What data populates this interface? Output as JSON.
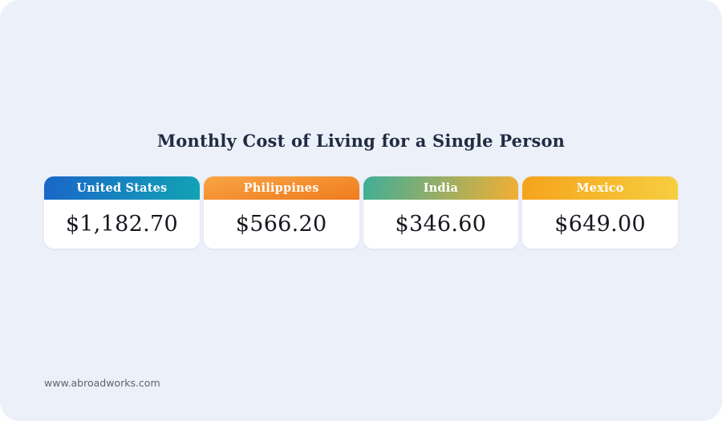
{
  "page": {
    "title": "Monthly Cost of Living for a Single Person",
    "footer": "www.abroadworks.com"
  },
  "chart_data": {
    "type": "table",
    "title": "Monthly Cost of Living for a Single Person",
    "categories": [
      "United States",
      "Philippines",
      "India",
      "Mexico"
    ],
    "values": [
      1182.7,
      566.2,
      346.6,
      649.0
    ],
    "value_labels": [
      "$1,182.70",
      "$566.20",
      "$346.60",
      "$649.00"
    ],
    "currency": "USD",
    "legend_position": "none",
    "grid": false
  },
  "cards": [
    {
      "label": "United States",
      "value": "$1,182.70",
      "gradient_angle": "100deg",
      "gradient_from": "#1A66C9",
      "gradient_to": "#12A3B4"
    },
    {
      "label": "Philippines",
      "value": "$566.20",
      "gradient_angle": "170deg",
      "gradient_from": "#F9A544",
      "gradient_to": "#EF7B1F"
    },
    {
      "label": "India",
      "value": "$346.60",
      "gradient_angle": "105deg",
      "gradient_from": "#3EAE97",
      "gradient_to": "#F3AF33"
    },
    {
      "label": "Mexico",
      "value": "$649.00",
      "gradient_angle": "100deg",
      "gradient_from": "#F5A31B",
      "gradient_to": "#F7CE40"
    }
  ],
  "colors": {
    "page_bg": "#FFFFFF",
    "canvas_bg": "#ECF1F9",
    "title_text": "#212C43",
    "value_text": "#15181D",
    "footer_text": "#5A6472",
    "card_bg": "#FFFFFF",
    "header_label_text": "#FFFFFF"
  }
}
